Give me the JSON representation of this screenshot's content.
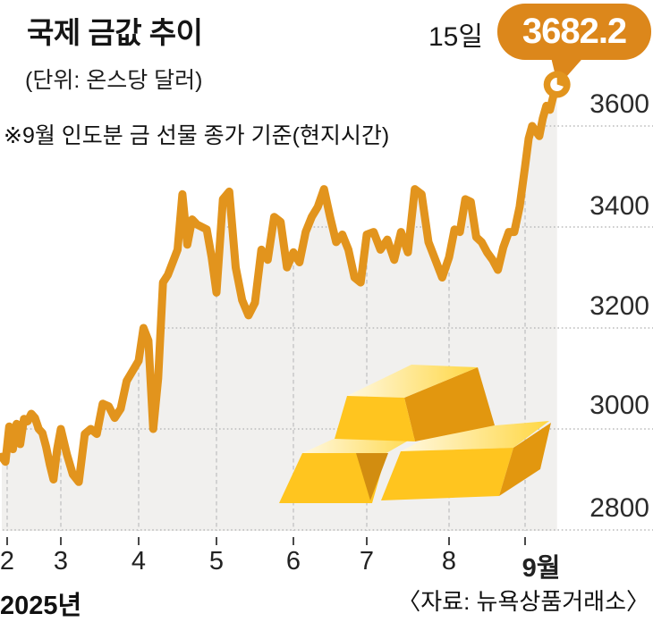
{
  "title": "국제 금값 추이",
  "unit_note": "(단위: 온스당 달러)",
  "footnote": "※9월 인도분 금 선물 종가 기준(현지시간)",
  "callout": {
    "date_label": "15일",
    "value_label": "3682.2"
  },
  "year_label": "2025년",
  "source": "〈자료: 뉴욕상품거래소〉",
  "colors": {
    "line": "#E2941D",
    "bubble": "#DC871B",
    "area_fill": "#F1F0EE",
    "grid_horizontal": "#BBBBBB",
    "grid_vertical": "#C6C6C6",
    "tick": "#4A4A4A",
    "bar_front": "#FFC51F",
    "bar_side": "#E2970F",
    "bar_gap": "#D28D10",
    "bar_top_light": "#FFF8E0",
    "bar_top_deep": "#FFD743"
  },
  "chart_data": {
    "type": "area",
    "title": "국제 금값 추이",
    "unit": "온스당 달러",
    "note": "9월 인도분 금 선물 종가 기준(현지시간)",
    "x_axis": {
      "tick_labels": [
        "2",
        "3",
        "4",
        "5",
        "6",
        "7",
        "8",
        "9월"
      ],
      "year": "2025년"
    },
    "y_axis": {
      "tick_labels": [
        3600,
        3400,
        3200,
        3000,
        2800
      ],
      "min": 2800,
      "max": 3600,
      "gridlines": "dotted"
    },
    "last_point": {
      "date": "15일",
      "value": 3682.2
    },
    "legend_position": "none",
    "months": [
      {
        "label": "2",
        "values": [
          2945,
          2935,
          3005,
          2960,
          3010,
          2970,
          3020,
          3015,
          3030,
          3022,
          3000,
          2992,
          2965,
          2930,
          2900,
          2960
        ]
      },
      {
        "label": "3",
        "values": [
          3000,
          2950,
          2910,
          2895,
          2990,
          3000,
          2990,
          3050,
          3045,
          3022,
          3040,
          3095,
          3115
        ]
      },
      {
        "label": "4",
        "values": [
          3135,
          3200,
          3175,
          3000,
          3100,
          3290,
          3305,
          3330,
          3355,
          3465,
          3365,
          3415,
          3405,
          3400,
          3395,
          3340
        ]
      },
      {
        "label": "5",
        "values": [
          3270,
          3455,
          3470,
          3320,
          3255,
          3225,
          3250,
          3355,
          3335,
          3420,
          3410,
          3320
        ]
      },
      {
        "label": "6",
        "values": [
          3350,
          3330,
          3390,
          3420,
          3440,
          3475,
          3420,
          3370,
          3385,
          3355,
          3300,
          3290
        ]
      },
      {
        "label": "7",
        "values": [
          3385,
          3390,
          3355,
          3375,
          3335,
          3390,
          3350,
          3475,
          3465,
          3370,
          3335,
          3300
        ]
      },
      {
        "label": "8",
        "values": [
          3340,
          3395,
          3390,
          3455,
          3450,
          3380,
          3370,
          3350,
          3335,
          3315,
          3360,
          3390,
          3390,
          3440
        ]
      },
      {
        "label": "9월",
        "values": [
          3520,
          3575,
          3600,
          3590,
          3580,
          3615,
          3640,
          3632,
          3660,
          3682.2
        ],
        "span": 0.42
      }
    ]
  }
}
